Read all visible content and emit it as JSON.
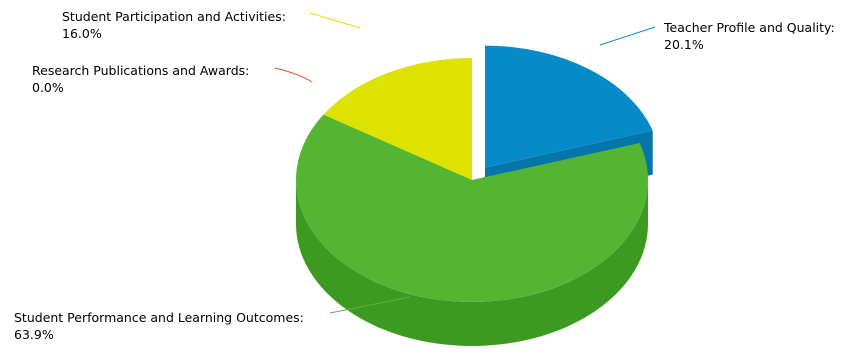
{
  "chart_data": {
    "type": "pie",
    "title": "",
    "legend": "none",
    "slices": [
      {
        "label": "Teacher Profile and Quality:",
        "value": 20.1,
        "display": "20.1%",
        "color": "#078bc8",
        "side_color": "#0575aa",
        "leader_color": "#078bc8",
        "exploded": true
      },
      {
        "label": "Student Performance and Learning Outcomes:",
        "value": 63.9,
        "display": "63.9%",
        "color": "#53b533",
        "side_color": "#3c9a21",
        "leader_color": "#53b533",
        "exploded": false
      },
      {
        "label": "Research Publications and Awards:",
        "value": 0.0,
        "display": "0.0%",
        "color": "#e1551f",
        "side_color": "#c0441a",
        "leader_color": "#e1551f",
        "exploded": false
      },
      {
        "label": "Student Participation and Activities:",
        "value": 16.0,
        "display": "16.0%",
        "color": "#dde200",
        "side_color": "#c4ca00",
        "leader_color": "#dde200",
        "exploded": false
      }
    ]
  }
}
